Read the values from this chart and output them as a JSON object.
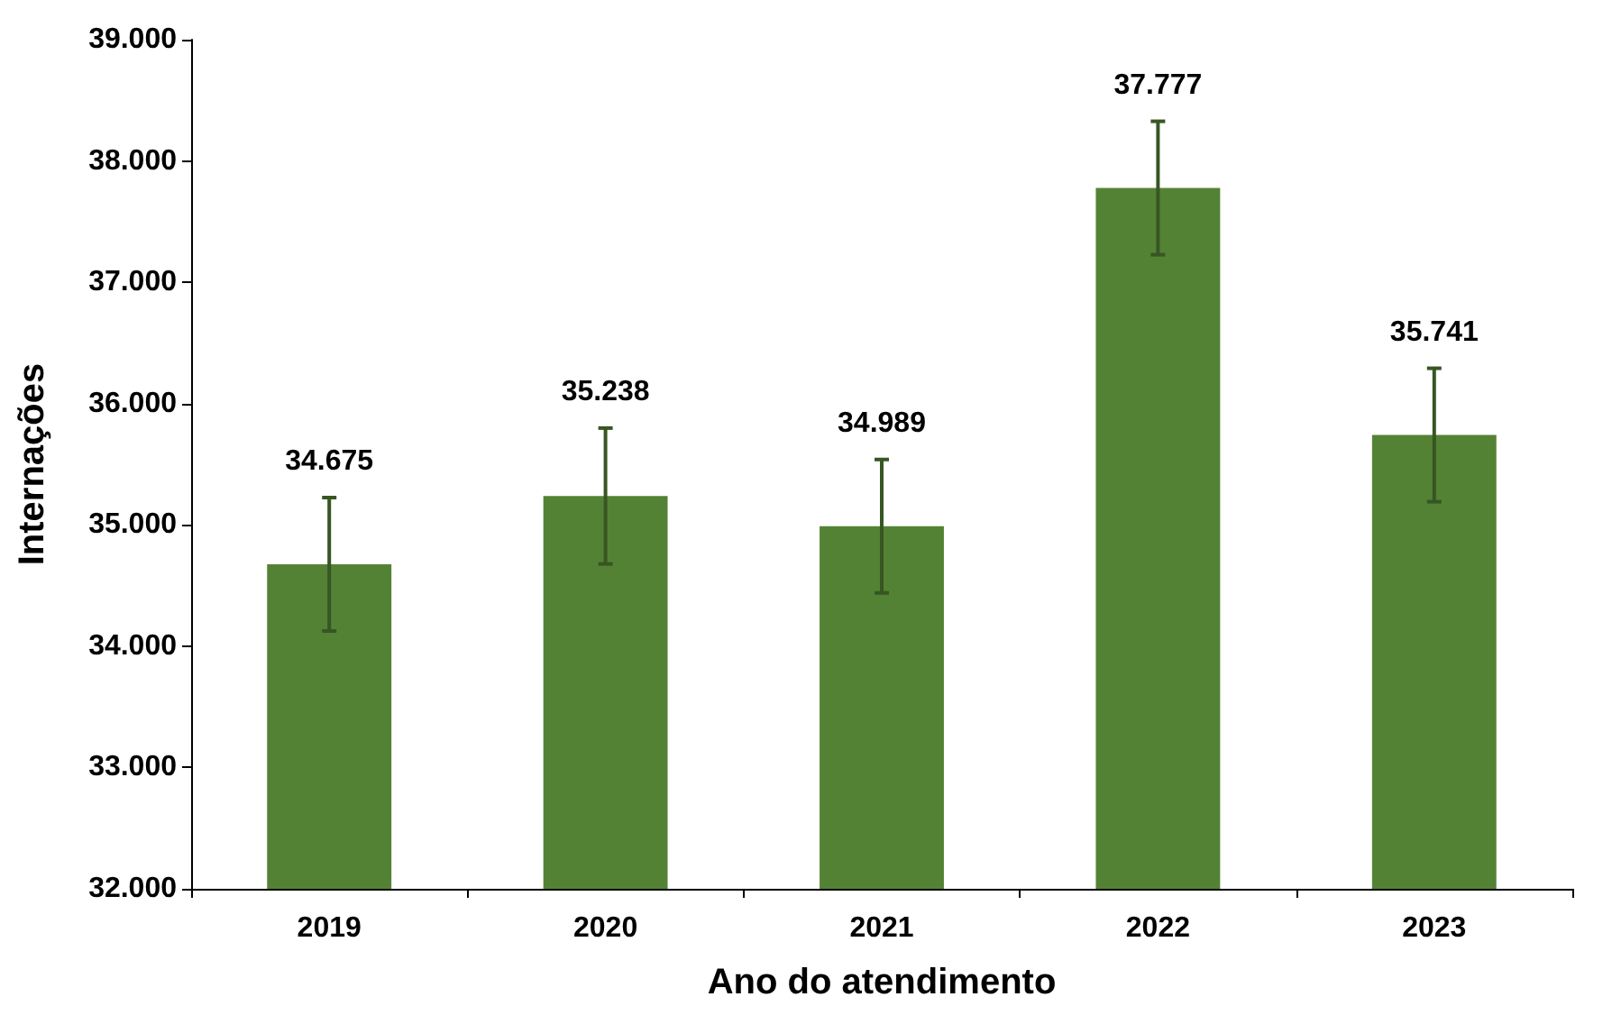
{
  "chart_data": {
    "type": "bar",
    "xlabel": "Ano do atendimento",
    "ylabel": "Internações",
    "categories": [
      "2019",
      "2020",
      "2021",
      "2022",
      "2023"
    ],
    "values": [
      34675,
      35238,
      34989,
      37777,
      35741
    ],
    "errors": [
      550,
      560,
      550,
      550,
      550
    ],
    "value_labels": [
      "34.675",
      "35.238",
      "34.989",
      "37.777",
      "35.741"
    ],
    "color": "#548235",
    "ylim": [
      32000,
      39000
    ],
    "yticks": [
      {
        "value": 32000,
        "label": "32.000"
      },
      {
        "value": 33000,
        "label": "33.000"
      },
      {
        "value": 34000,
        "label": "34.000"
      },
      {
        "value": 35000,
        "label": "35.000"
      },
      {
        "value": 36000,
        "label": "36.000"
      },
      {
        "value": 37000,
        "label": "37.000"
      },
      {
        "value": 38000,
        "label": "38.000"
      },
      {
        "value": 39000,
        "label": "39.000"
      }
    ],
    "grid": false
  }
}
